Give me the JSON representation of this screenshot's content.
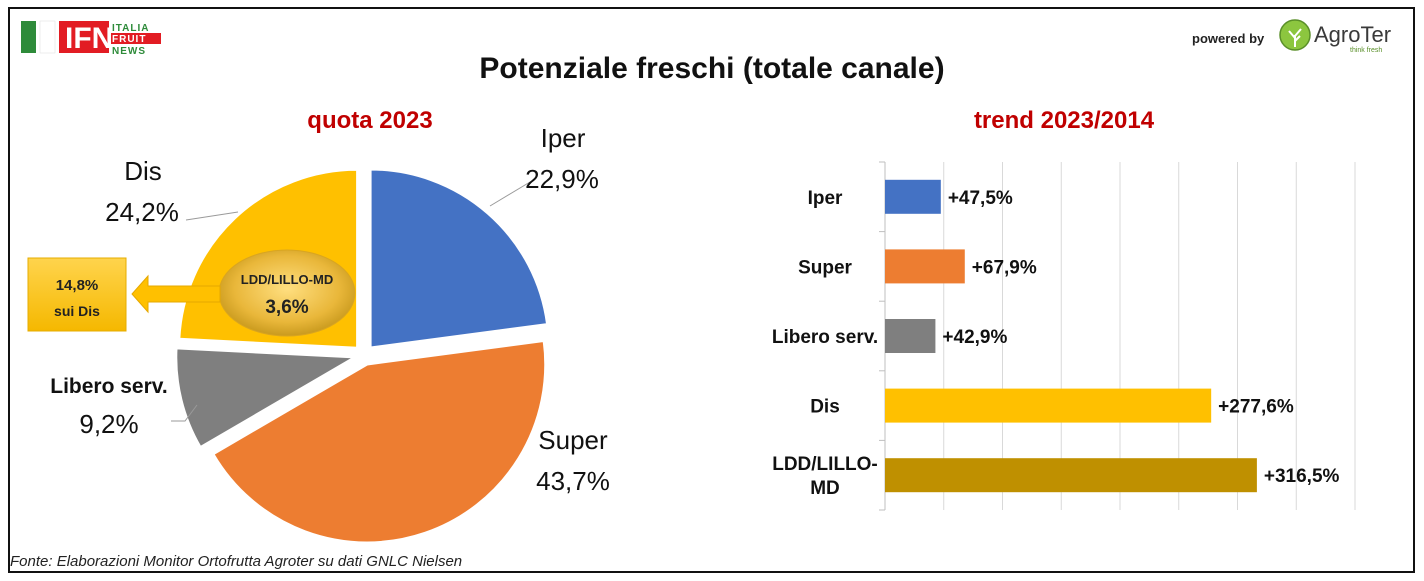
{
  "header": {
    "logo_ifn_text": "IFN",
    "logo_ifn_lines": [
      "ITALIA",
      "FRUIT",
      "NEWS"
    ],
    "powered_by": "powered by",
    "agroter_name": "AgroTer",
    "agroter_tagline": "think fresh"
  },
  "title": "Potenziale freschi (totale canale)",
  "source": "Fonte: Elaborazioni Monitor Ortofrutta Agroter su dati GNLC Nielsen",
  "colors": {
    "iper": "#4472c4",
    "super": "#ed7d31",
    "libero": "#7f7f7f",
    "dis": "#ffc000",
    "ldd": "#bf9000",
    "subtitle": "#c00000"
  },
  "chart_data": [
    {
      "type": "pie",
      "title": "quota 2023",
      "slices": [
        {
          "name": "Iper",
          "value": 22.9,
          "label": "22,9%",
          "color": "#4472c4"
        },
        {
          "name": "Super",
          "value": 43.7,
          "label": "43,7%",
          "color": "#ed7d31"
        },
        {
          "name": "Libero serv.",
          "value": 9.2,
          "label": "9,2%",
          "color": "#7f7f7f"
        },
        {
          "name": "Dis",
          "value": 24.2,
          "label": "24,2%",
          "color": "#ffc000"
        }
      ],
      "inner_highlight": {
        "name": "LDD/LILLO-MD",
        "value": 3.6,
        "label": "3,6%"
      },
      "callout": {
        "value": "14,8%",
        "text": "sui Dis"
      }
    },
    {
      "type": "bar",
      "orientation": "horizontal",
      "title": "trend 2023/2014",
      "categories": [
        "Iper",
        "Super",
        "Libero serv.",
        "Dis",
        "LDD/LILLO-MD"
      ],
      "category_lines": [
        [
          "Iper"
        ],
        [
          "Super"
        ],
        [
          "Libero serv."
        ],
        [
          "Dis"
        ],
        [
          "LDD/LILLO-",
          "MD"
        ]
      ],
      "values": [
        47.5,
        67.9,
        42.9,
        277.6,
        316.5
      ],
      "labels": [
        "+47,5%",
        "+67,9%",
        "+42,9%",
        "+277,6%",
        "+316,5%"
      ],
      "colors": [
        "#4472c4",
        "#ed7d31",
        "#7f7f7f",
        "#ffc000",
        "#bf9000"
      ],
      "xlim": [
        0,
        400
      ],
      "grid": true
    }
  ]
}
